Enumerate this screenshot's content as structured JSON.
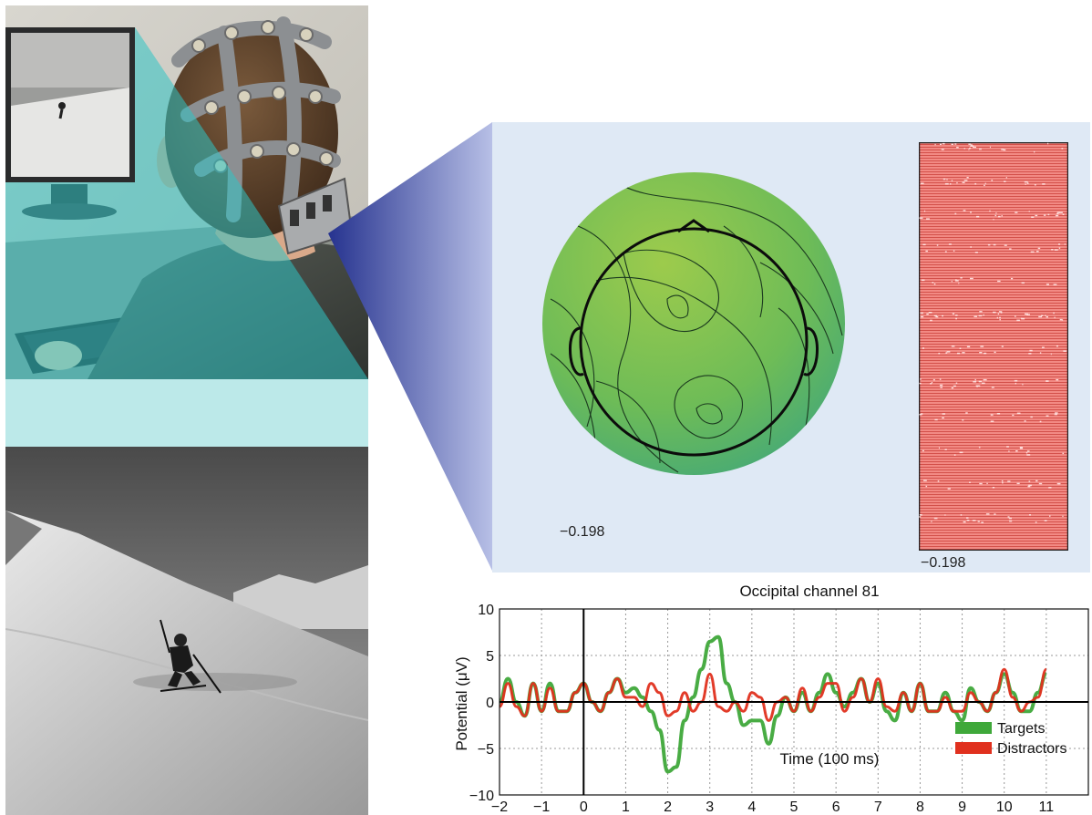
{
  "scalp_map": {
    "min_label": "−0.198"
  },
  "trial_raster": {
    "min_label": "−0.198"
  },
  "colors": {
    "targets": "#3fa83a",
    "distractors": "#e0301e",
    "projection": "#3b46a8",
    "screen_beam": "#2fc4c4",
    "map_bg": "#dfe9f5"
  },
  "chart_data": {
    "type": "line",
    "title": "Occipital channel 81",
    "xlabel": "Time (100 ms)",
    "ylabel": "Potential (μV)",
    "xlim": [
      -2,
      12
    ],
    "ylim": [
      -10,
      10
    ],
    "xticks": [
      -2,
      -1,
      0,
      1,
      2,
      3,
      4,
      5,
      6,
      7,
      8,
      9,
      10,
      11
    ],
    "yticks": [
      -10,
      -5,
      0,
      5,
      10
    ],
    "grid": true,
    "legend": "bottom-right",
    "series": [
      {
        "name": "Targets",
        "color": "#3fa83a",
        "x": [
          -2,
          -1.8,
          -1.6,
          -1.4,
          -1.2,
          -1,
          -0.8,
          -0.6,
          -0.4,
          -0.2,
          0,
          0.2,
          0.4,
          0.6,
          0.8,
          1,
          1.2,
          1.4,
          1.6,
          1.8,
          2,
          2.2,
          2.4,
          2.6,
          2.8,
          3,
          3.2,
          3.4,
          3.6,
          3.8,
          4,
          4.2,
          4.4,
          4.6,
          4.8,
          5,
          5.2,
          5.4,
          5.6,
          5.8,
          6,
          6.2,
          6.4,
          6.6,
          6.8,
          7,
          7.2,
          7.4,
          7.6,
          7.8,
          8,
          8.2,
          8.4,
          8.6,
          8.8,
          9,
          9.2,
          9.4,
          9.6,
          9.8,
          10,
          10.2,
          10.4,
          10.6,
          10.8,
          11
        ],
        "y": [
          0,
          2.5,
          0,
          -1.5,
          2,
          -1,
          2,
          -1,
          -1,
          1,
          2,
          0,
          -1,
          1,
          2.5,
          1,
          1.5,
          0.5,
          -1,
          -3,
          -7.5,
          -7,
          -2,
          0.5,
          3.5,
          6.5,
          7,
          2,
          0,
          -2.5,
          -2,
          -2,
          -4.5,
          -1.5,
          0.5,
          -1,
          1,
          -1,
          1,
          3,
          1,
          -0.5,
          1,
          2.5,
          0,
          2,
          -1,
          -2,
          1,
          -1,
          2,
          -1,
          -1,
          1,
          -1,
          -2,
          1.5,
          0,
          -1,
          1,
          3,
          1,
          -1,
          -1,
          1,
          3
        ]
      },
      {
        "name": "Distractors",
        "color": "#e0301e",
        "x": [
          -2,
          -1.8,
          -1.6,
          -1.4,
          -1.2,
          -1,
          -0.8,
          -0.6,
          -0.4,
          -0.2,
          0,
          0.2,
          0.4,
          0.6,
          0.8,
          1,
          1.2,
          1.4,
          1.6,
          1.8,
          2,
          2.2,
          2.4,
          2.6,
          2.8,
          3,
          3.2,
          3.4,
          3.6,
          3.8,
          4,
          4.2,
          4.4,
          4.6,
          4.8,
          5,
          5.2,
          5.4,
          5.6,
          5.8,
          6,
          6.2,
          6.4,
          6.6,
          6.8,
          7,
          7.2,
          7.4,
          7.6,
          7.8,
          8,
          8.2,
          8.4,
          8.6,
          8.8,
          9,
          9.2,
          9.4,
          9.6,
          9.8,
          10,
          10.2,
          10.4,
          10.6,
          10.8,
          11
        ],
        "y": [
          -0.5,
          2,
          -0.5,
          -1.5,
          2,
          -1,
          1.5,
          -1,
          -1,
          1,
          2,
          0,
          -1,
          1,
          2.5,
          0.5,
          0.5,
          -0.5,
          2,
          1,
          -1.5,
          -1,
          1,
          -1,
          0,
          3,
          -0.5,
          -1,
          0,
          -1,
          1,
          0.5,
          -2,
          0,
          0.5,
          -1,
          1.5,
          -1,
          0.5,
          2,
          2,
          -1,
          0.5,
          2.5,
          0,
          2.5,
          -0.5,
          -1,
          1,
          -1,
          2,
          -1,
          -1,
          0.5,
          -1,
          -1,
          1,
          0,
          -1,
          1,
          3.5,
          0.5,
          -1,
          0,
          0.5,
          3.5
        ]
      }
    ]
  }
}
